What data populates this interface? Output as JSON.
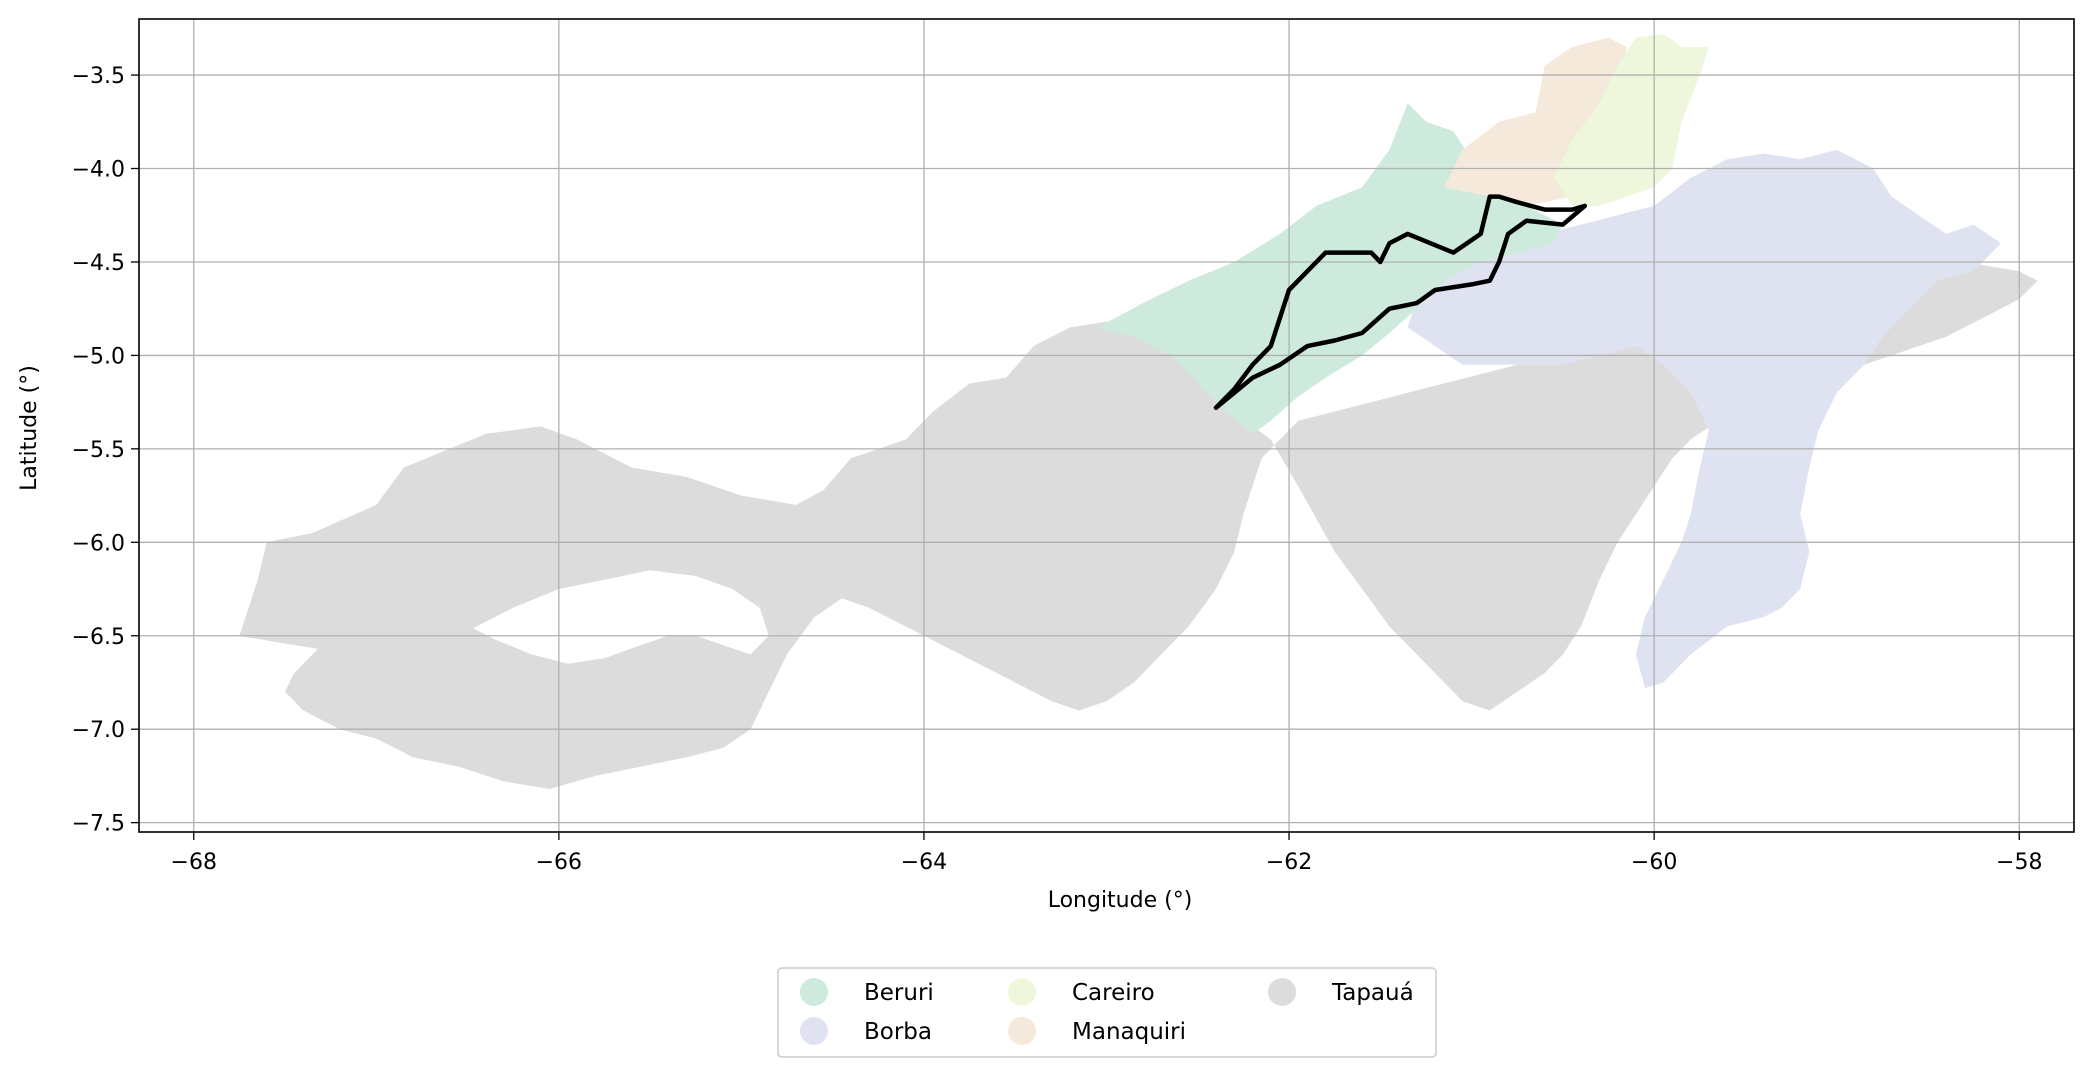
{
  "chart_data": {
    "type": "map",
    "xlabel": "Longitude (°)",
    "ylabel": "Latitude (°)",
    "xlim": [
      -68.3,
      -57.7
    ],
    "ylim": [
      -7.55,
      -3.2
    ],
    "xticks": [
      "−68",
      "−66",
      "−64",
      "−62",
      "−60",
      "−58"
    ],
    "xtick_values": [
      -68,
      -66,
      -64,
      -62,
      -60,
      -58
    ],
    "yticks": [
      "−3.5",
      "−4.0",
      "−4.5",
      "−5.0",
      "−5.5",
      "−6.0",
      "−6.5",
      "−7.0",
      "−7.5"
    ],
    "ytick_values": [
      -3.5,
      -4.0,
      -4.5,
      -5.0,
      -5.5,
      -6.0,
      -6.5,
      -7.0,
      -7.5
    ],
    "grid": true,
    "legend_position": "bottom-center",
    "legend": [
      {
        "name": "Beruri",
        "color": "#cdeadc"
      },
      {
        "name": "Borba",
        "color": "#dfe3f1"
      },
      {
        "name": "Careiro",
        "color": "#eef7dc"
      },
      {
        "name": "Manaquiri",
        "color": "#f5e9dc"
      },
      {
        "name": "Tapauá",
        "color": "#dcdcdc"
      }
    ],
    "regions": [
      {
        "name": "Tapauá",
        "color": "#dcdcdc",
        "coords": [
          [
            -67.75,
            -6.5
          ],
          [
            -67.65,
            -6.2
          ],
          [
            -67.6,
            -6.0
          ],
          [
            -67.35,
            -5.95
          ],
          [
            -67.0,
            -5.8
          ],
          [
            -66.85,
            -5.6
          ],
          [
            -66.6,
            -5.5
          ],
          [
            -66.4,
            -5.42
          ],
          [
            -66.1,
            -5.38
          ],
          [
            -65.9,
            -5.45
          ],
          [
            -65.6,
            -5.6
          ],
          [
            -65.3,
            -5.65
          ],
          [
            -65.0,
            -5.75
          ],
          [
            -64.7,
            -5.8
          ],
          [
            -64.55,
            -5.72
          ],
          [
            -64.4,
            -5.55
          ],
          [
            -64.1,
            -5.45
          ],
          [
            -63.95,
            -5.3
          ],
          [
            -63.75,
            -5.15
          ],
          [
            -63.55,
            -5.12
          ],
          [
            -63.4,
            -4.95
          ],
          [
            -63.2,
            -4.85
          ],
          [
            -63.0,
            -4.82
          ],
          [
            -62.8,
            -4.85
          ],
          [
            -62.6,
            -5.0
          ],
          [
            -62.45,
            -5.2
          ],
          [
            -62.1,
            -5.45
          ],
          [
            -61.95,
            -5.7
          ],
          [
            -61.75,
            -6.05
          ],
          [
            -61.6,
            -6.25
          ],
          [
            -61.45,
            -6.45
          ],
          [
            -61.3,
            -6.6
          ],
          [
            -61.15,
            -6.75
          ],
          [
            -61.05,
            -6.85
          ],
          [
            -60.9,
            -6.9
          ],
          [
            -60.75,
            -6.8
          ],
          [
            -60.6,
            -6.7
          ],
          [
            -60.5,
            -6.6
          ],
          [
            -60.4,
            -6.45
          ],
          [
            -60.3,
            -6.2
          ],
          [
            -60.2,
            -6.0
          ],
          [
            -60.1,
            -5.85
          ],
          [
            -60.0,
            -5.7
          ],
          [
            -59.9,
            -5.55
          ],
          [
            -59.8,
            -5.45
          ],
          [
            -59.65,
            -5.35
          ],
          [
            -59.45,
            -5.25
          ],
          [
            -59.2,
            -5.15
          ],
          [
            -59.0,
            -5.1
          ],
          [
            -58.85,
            -5.05
          ],
          [
            -58.7,
            -5.0
          ],
          [
            -58.55,
            -4.95
          ],
          [
            -58.4,
            -4.9
          ],
          [
            -58.2,
            -4.8
          ],
          [
            -58.0,
            -4.7
          ],
          [
            -57.9,
            -4.6
          ],
          [
            -58.0,
            -4.55
          ],
          [
            -58.3,
            -4.5
          ],
          [
            -58.6,
            -4.4
          ],
          [
            -58.9,
            -4.3
          ],
          [
            -59.1,
            -4.2
          ],
          [
            -59.3,
            -4.15
          ],
          [
            -59.5,
            -4.1
          ],
          [
            -59.7,
            -4.05
          ],
          [
            -59.85,
            -4.1
          ],
          [
            -60.0,
            -4.2
          ],
          [
            -60.05,
            -4.35
          ],
          [
            -60.1,
            -4.55
          ],
          [
            -60.2,
            -4.75
          ],
          [
            -60.35,
            -4.85
          ],
          [
            -60.55,
            -4.95
          ],
          [
            -60.75,
            -5.05
          ],
          [
            -60.95,
            -5.1
          ],
          [
            -61.15,
            -5.15
          ],
          [
            -61.35,
            -5.2
          ],
          [
            -61.55,
            -5.25
          ],
          [
            -61.75,
            -5.3
          ],
          [
            -61.95,
            -5.35
          ],
          [
            -62.05,
            -5.45
          ],
          [
            -62.15,
            -5.55
          ],
          [
            -62.2,
            -5.7
          ],
          [
            -62.25,
            -5.85
          ],
          [
            -62.3,
            -6.05
          ],
          [
            -62.4,
            -6.25
          ],
          [
            -62.55,
            -6.45
          ],
          [
            -62.7,
            -6.6
          ],
          [
            -62.85,
            -6.75
          ],
          [
            -63.0,
            -6.85
          ],
          [
            -63.15,
            -6.9
          ],
          [
            -63.3,
            -6.85
          ],
          [
            -63.5,
            -6.75
          ],
          [
            -63.7,
            -6.65
          ],
          [
            -63.9,
            -6.55
          ],
          [
            -64.1,
            -6.45
          ],
          [
            -64.3,
            -6.35
          ],
          [
            -64.45,
            -6.3
          ],
          [
            -64.6,
            -6.4
          ],
          [
            -64.75,
            -6.6
          ],
          [
            -64.85,
            -6.8
          ],
          [
            -64.95,
            -7.0
          ],
          [
            -65.1,
            -7.1
          ],
          [
            -65.3,
            -7.15
          ],
          [
            -65.55,
            -7.2
          ],
          [
            -65.8,
            -7.25
          ],
          [
            -66.05,
            -7.32
          ],
          [
            -66.3,
            -7.28
          ],
          [
            -66.55,
            -7.2
          ],
          [
            -66.8,
            -7.15
          ],
          [
            -67.0,
            -7.05
          ],
          [
            -67.2,
            -7.0
          ],
          [
            -67.4,
            -6.9
          ],
          [
            -67.5,
            -6.8
          ],
          [
            -67.45,
            -6.7
          ],
          [
            -67.3,
            -6.55
          ],
          [
            -67.1,
            -6.45
          ],
          [
            -66.95,
            -6.4
          ],
          [
            -66.75,
            -6.38
          ],
          [
            -66.55,
            -6.42
          ],
          [
            -66.35,
            -6.52
          ],
          [
            -66.15,
            -6.6
          ],
          [
            -65.95,
            -6.65
          ],
          [
            -65.75,
            -6.62
          ],
          [
            -65.55,
            -6.55
          ],
          [
            -65.4,
            -6.5
          ],
          [
            -65.25,
            -6.5
          ],
          [
            -65.1,
            -6.55
          ],
          [
            -64.95,
            -6.6
          ],
          [
            -64.85,
            -6.5
          ],
          [
            -64.9,
            -6.35
          ],
          [
            -65.05,
            -6.25
          ],
          [
            -65.25,
            -6.18
          ],
          [
            -65.5,
            -6.15
          ],
          [
            -65.75,
            -6.2
          ],
          [
            -66.0,
            -6.25
          ],
          [
            -66.25,
            -6.35
          ],
          [
            -66.45,
            -6.45
          ],
          [
            -66.65,
            -6.55
          ],
          [
            -66.85,
            -6.6
          ],
          [
            -67.05,
            -6.62
          ],
          [
            -67.25,
            -6.58
          ],
          [
            -67.45,
            -6.55
          ],
          [
            -67.75,
            -6.5
          ]
        ]
      },
      {
        "name": "Borba",
        "color": "#dfe3f1",
        "coords": [
          [
            -61.2,
            -4.6
          ],
          [
            -61.0,
            -4.5
          ],
          [
            -60.8,
            -4.45
          ],
          [
            -60.6,
            -4.35
          ],
          [
            -60.4,
            -4.3
          ],
          [
            -60.2,
            -4.25
          ],
          [
            -60.0,
            -4.2
          ],
          [
            -59.8,
            -4.05
          ],
          [
            -59.6,
            -3.95
          ],
          [
            -59.4,
            -3.92
          ],
          [
            -59.2,
            -3.95
          ],
          [
            -59.0,
            -3.9
          ],
          [
            -58.8,
            -4.0
          ],
          [
            -58.7,
            -4.15
          ],
          [
            -58.55,
            -4.25
          ],
          [
            -58.4,
            -4.35
          ],
          [
            -58.25,
            -4.3
          ],
          [
            -58.1,
            -4.4
          ],
          [
            -58.25,
            -4.55
          ],
          [
            -58.45,
            -4.6
          ],
          [
            -58.6,
            -4.75
          ],
          [
            -58.75,
            -4.9
          ],
          [
            -58.85,
            -5.05
          ],
          [
            -59.0,
            -5.2
          ],
          [
            -59.1,
            -5.4
          ],
          [
            -59.15,
            -5.6
          ],
          [
            -59.2,
            -5.85
          ],
          [
            -59.15,
            -6.05
          ],
          [
            -59.2,
            -6.25
          ],
          [
            -59.3,
            -6.35
          ],
          [
            -59.4,
            -6.4
          ],
          [
            -59.6,
            -6.45
          ],
          [
            -59.8,
            -6.6
          ],
          [
            -59.95,
            -6.75
          ],
          [
            -60.05,
            -6.78
          ],
          [
            -60.1,
            -6.6
          ],
          [
            -60.05,
            -6.4
          ],
          [
            -59.95,
            -6.2
          ],
          [
            -59.85,
            -6.0
          ],
          [
            -59.8,
            -5.85
          ],
          [
            -59.75,
            -5.6
          ],
          [
            -59.7,
            -5.4
          ],
          [
            -59.8,
            -5.2
          ],
          [
            -59.95,
            -5.05
          ],
          [
            -60.1,
            -4.95
          ],
          [
            -60.3,
            -5.0
          ],
          [
            -60.5,
            -5.05
          ],
          [
            -60.7,
            -5.05
          ],
          [
            -60.9,
            -5.05
          ],
          [
            -61.05,
            -5.05
          ],
          [
            -61.2,
            -4.95
          ],
          [
            -61.35,
            -4.85
          ],
          [
            -61.3,
            -4.7
          ],
          [
            -61.2,
            -4.6
          ]
        ]
      },
      {
        "name": "Beruri",
        "color": "#cdeadc",
        "coords": [
          [
            -63.05,
            -4.85
          ],
          [
            -62.8,
            -4.72
          ],
          [
            -62.55,
            -4.6
          ],
          [
            -62.3,
            -4.5
          ],
          [
            -62.05,
            -4.35
          ],
          [
            -61.85,
            -4.2
          ],
          [
            -61.6,
            -4.1
          ],
          [
            -61.45,
            -3.9
          ],
          [
            -61.35,
            -3.65
          ],
          [
            -61.25,
            -3.75
          ],
          [
            -61.1,
            -3.8
          ],
          [
            -61.0,
            -3.95
          ],
          [
            -60.9,
            -4.05
          ],
          [
            -60.8,
            -4.15
          ],
          [
            -60.7,
            -4.2
          ],
          [
            -60.6,
            -4.25
          ],
          [
            -60.5,
            -4.3
          ],
          [
            -60.55,
            -4.4
          ],
          [
            -60.75,
            -4.45
          ],
          [
            -60.95,
            -4.5
          ],
          [
            -61.15,
            -4.6
          ],
          [
            -61.3,
            -4.75
          ],
          [
            -61.45,
            -4.88
          ],
          [
            -61.6,
            -5.0
          ],
          [
            -61.8,
            -5.12
          ],
          [
            -61.95,
            -5.22
          ],
          [
            -62.1,
            -5.35
          ],
          [
            -62.2,
            -5.42
          ],
          [
            -62.35,
            -5.3
          ],
          [
            -62.5,
            -5.15
          ],
          [
            -62.65,
            -5.0
          ],
          [
            -62.85,
            -4.9
          ],
          [
            -63.05,
            -4.85
          ]
        ]
      },
      {
        "name": "Manaquiri",
        "color": "#f5e9dc",
        "coords": [
          [
            -61.15,
            -4.1
          ],
          [
            -61.05,
            -3.9
          ],
          [
            -60.85,
            -3.75
          ],
          [
            -60.65,
            -3.7
          ],
          [
            -60.6,
            -3.45
          ],
          [
            -60.45,
            -3.35
          ],
          [
            -60.25,
            -3.3
          ],
          [
            -60.15,
            -3.35
          ],
          [
            -60.2,
            -3.6
          ],
          [
            -60.3,
            -3.9
          ],
          [
            -60.45,
            -4.15
          ],
          [
            -60.7,
            -4.2
          ],
          [
            -60.9,
            -4.15
          ],
          [
            -61.15,
            -4.1
          ]
        ]
      },
      {
        "name": "Careiro",
        "color": "#eef7dc",
        "coords": [
          [
            -60.55,
            -4.05
          ],
          [
            -60.45,
            -3.85
          ],
          [
            -60.3,
            -3.65
          ],
          [
            -60.2,
            -3.45
          ],
          [
            -60.1,
            -3.3
          ],
          [
            -59.95,
            -3.28
          ],
          [
            -59.85,
            -3.35
          ],
          [
            -59.7,
            -3.35
          ],
          [
            -59.75,
            -3.5
          ],
          [
            -59.85,
            -3.75
          ],
          [
            -59.9,
            -4.0
          ],
          [
            -60.0,
            -4.1
          ],
          [
            -60.15,
            -4.15
          ],
          [
            -60.3,
            -4.2
          ],
          [
            -60.45,
            -4.2
          ],
          [
            -60.55,
            -4.05
          ]
        ]
      }
    ],
    "outline": [
      [
        -62.4,
        -5.28
      ],
      [
        -62.3,
        -5.18
      ],
      [
        -62.2,
        -5.05
      ],
      [
        -62.1,
        -4.95
      ],
      [
        -62.05,
        -4.8
      ],
      [
        -62.0,
        -4.65
      ],
      [
        -61.9,
        -4.55
      ],
      [
        -61.8,
        -4.45
      ],
      [
        -61.55,
        -4.45
      ],
      [
        -61.5,
        -4.5
      ],
      [
        -61.45,
        -4.4
      ],
      [
        -61.35,
        -4.35
      ],
      [
        -61.1,
        -4.45
      ],
      [
        -60.95,
        -4.35
      ],
      [
        -60.9,
        -4.15
      ],
      [
        -60.85,
        -4.15
      ],
      [
        -60.75,
        -4.18
      ],
      [
        -60.6,
        -4.22
      ],
      [
        -60.45,
        -4.22
      ],
      [
        -60.38,
        -4.2
      ],
      [
        -60.5,
        -4.3
      ],
      [
        -60.7,
        -4.28
      ],
      [
        -60.8,
        -4.35
      ],
      [
        -60.85,
        -4.5
      ],
      [
        -60.9,
        -4.6
      ],
      [
        -61.0,
        -4.62
      ],
      [
        -61.2,
        -4.65
      ],
      [
        -61.3,
        -4.72
      ],
      [
        -61.45,
        -4.75
      ],
      [
        -61.6,
        -4.88
      ],
      [
        -61.75,
        -4.92
      ],
      [
        -61.9,
        -4.95
      ],
      [
        -62.05,
        -5.05
      ],
      [
        -62.2,
        -5.12
      ],
      [
        -62.3,
        -5.2
      ],
      [
        -62.4,
        -5.28
      ]
    ]
  }
}
